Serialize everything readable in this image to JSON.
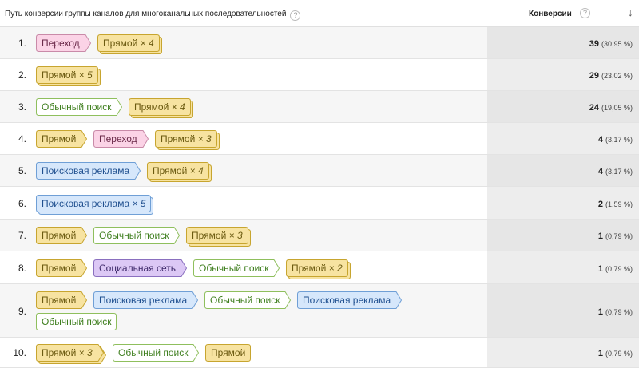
{
  "header": {
    "path_label": "Путь конверсии группы каналов для многоканальных последовательностей",
    "conversions_label": "Конверсии",
    "help_glyph": "?",
    "sort_glyph": "↓"
  },
  "channel_colors": {
    "direct": {
      "fill": "#f7e3a1",
      "stroke": "#c7a52f",
      "text": "#6b5a10"
    },
    "referral": {
      "fill": "#fbd3e6",
      "stroke": "#c98aa8",
      "text": "#6b2a4a"
    },
    "organic": {
      "fill": "#ffffff",
      "stroke": "#8fbf5d",
      "text": "#3f7f1f"
    },
    "paid": {
      "fill": "#d6e7fb",
      "stroke": "#6f9fd6",
      "text": "#1f4f8f"
    },
    "social": {
      "fill": "#dcc8f5",
      "stroke": "#8a6fbf",
      "text": "#3f2a6b"
    }
  },
  "rows": [
    {
      "index": "1.",
      "steps": [
        [
          {
            "label": "Переход",
            "channel": "referral",
            "repeat": ""
          },
          {
            "label": "Прямой",
            "channel": "direct",
            "repeat": "× 4"
          }
        ]
      ],
      "conversions": "39",
      "percent": "(30,95 %)"
    },
    {
      "index": "2.",
      "steps": [
        [
          {
            "label": "Прямой",
            "channel": "direct",
            "repeat": "× 5"
          }
        ]
      ],
      "conversions": "29",
      "percent": "(23,02 %)"
    },
    {
      "index": "3.",
      "steps": [
        [
          {
            "label": "Обычный поиск",
            "channel": "organic",
            "repeat": ""
          },
          {
            "label": "Прямой",
            "channel": "direct",
            "repeat": "× 4"
          }
        ]
      ],
      "conversions": "24",
      "percent": "(19,05 %)"
    },
    {
      "index": "4.",
      "steps": [
        [
          {
            "label": "Прямой",
            "channel": "direct",
            "repeat": ""
          },
          {
            "label": "Переход",
            "channel": "referral",
            "repeat": ""
          },
          {
            "label": "Прямой",
            "channel": "direct",
            "repeat": "× 3"
          }
        ]
      ],
      "conversions": "4",
      "percent": "(3,17 %)"
    },
    {
      "index": "5.",
      "steps": [
        [
          {
            "label": "Поисковая реклама",
            "channel": "paid",
            "repeat": ""
          },
          {
            "label": "Прямой",
            "channel": "direct",
            "repeat": "× 4"
          }
        ]
      ],
      "conversions": "4",
      "percent": "(3,17 %)"
    },
    {
      "index": "6.",
      "steps": [
        [
          {
            "label": "Поисковая реклама",
            "channel": "paid",
            "repeat": "× 5"
          }
        ]
      ],
      "conversions": "2",
      "percent": "(1,59 %)"
    },
    {
      "index": "7.",
      "steps": [
        [
          {
            "label": "Прямой",
            "channel": "direct",
            "repeat": ""
          },
          {
            "label": "Обычный поиск",
            "channel": "organic",
            "repeat": ""
          },
          {
            "label": "Прямой",
            "channel": "direct",
            "repeat": "× 3"
          }
        ]
      ],
      "conversions": "1",
      "percent": "(0,79 %)"
    },
    {
      "index": "8.",
      "steps": [
        [
          {
            "label": "Прямой",
            "channel": "direct",
            "repeat": ""
          },
          {
            "label": "Социальная сеть",
            "channel": "social",
            "repeat": ""
          },
          {
            "label": "Обычный поиск",
            "channel": "organic",
            "repeat": ""
          },
          {
            "label": "Прямой",
            "channel": "direct",
            "repeat": "× 2"
          }
        ]
      ],
      "conversions": "1",
      "percent": "(0,79 %)"
    },
    {
      "index": "9.",
      "steps": [
        [
          {
            "label": "Прямой",
            "channel": "direct",
            "repeat": ""
          },
          {
            "label": "Поисковая реклама",
            "channel": "paid",
            "repeat": ""
          },
          {
            "label": "Обычный поиск",
            "channel": "organic",
            "repeat": ""
          },
          {
            "label": "Поисковая реклама",
            "channel": "paid",
            "repeat": ""
          }
        ],
        [
          {
            "label": "Обычный поиск",
            "channel": "organic",
            "repeat": ""
          }
        ]
      ],
      "conversions": "1",
      "percent": "(0,79 %)"
    },
    {
      "index": "10.",
      "steps": [
        [
          {
            "label": "Прямой",
            "channel": "direct",
            "repeat": "× 3"
          },
          {
            "label": "Обычный поиск",
            "channel": "organic",
            "repeat": ""
          },
          {
            "label": "Прямой",
            "channel": "direct",
            "repeat": ""
          }
        ]
      ],
      "conversions": "1",
      "percent": "(0,79 %)"
    }
  ]
}
